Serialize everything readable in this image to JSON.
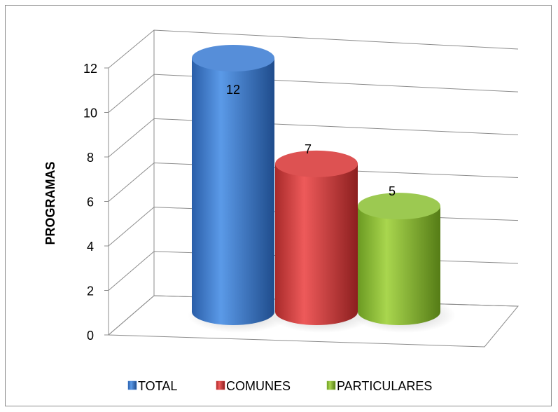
{
  "chart_data": {
    "type": "bar",
    "style": "3d-cylinder",
    "categories": [
      "TOTAL",
      "COMUNES",
      "PARTICULARES"
    ],
    "values": [
      12,
      7,
      5
    ],
    "series_colors": [
      "#3f7fd4",
      "#d93b3b",
      "#8fc23a"
    ],
    "title": "",
    "xlabel": "",
    "ylabel": "PROGRAMAS",
    "ylim": [
      0,
      12
    ],
    "yticks": [
      0,
      2,
      4,
      6,
      8,
      10,
      12
    ],
    "grid": true,
    "legend_position": "bottom"
  }
}
